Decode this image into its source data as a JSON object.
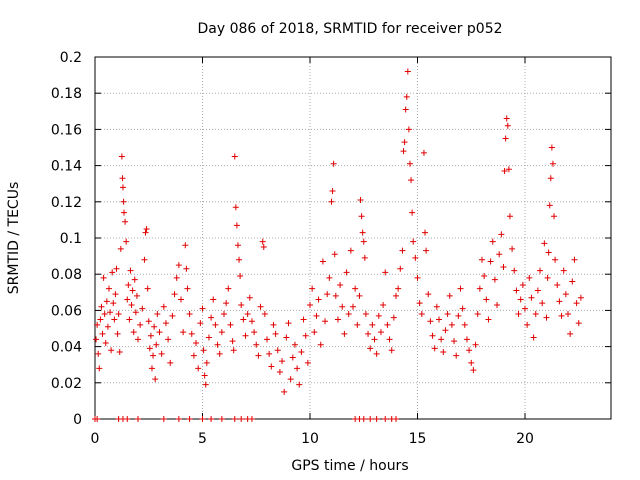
{
  "chart_data": {
    "type": "scatter",
    "title": "Day 086 of 2018, SRMTID for receiver p052",
    "xlabel": "GPS time / hours",
    "ylabel": "SRMTID / TECUs",
    "xlim": [
      0,
      24
    ],
    "ylim": [
      0,
      0.2
    ],
    "x_ticks": [
      0,
      5,
      10,
      15,
      20
    ],
    "x_tick_labels": [
      "0",
      "5",
      "10",
      "15",
      "20"
    ],
    "y_ticks": [
      0,
      0.02,
      0.04,
      0.06,
      0.08,
      0.1,
      0.12,
      0.14,
      0.16,
      0.18,
      0.2
    ],
    "y_tick_labels": [
      "0",
      "0.02",
      "0.04",
      "0.06",
      "0.08",
      "0.1",
      "0.12",
      "0.14",
      "0.16",
      "0.18",
      "0.2"
    ],
    "grid": true,
    "marker": "plus",
    "colors": {
      "series": "#e00000",
      "grid": "#aaaaaa",
      "axis": "#000000"
    },
    "series": [
      {
        "name": "SRMTID",
        "points": [
          [
            0.05,
            0.044
          ],
          [
            0.1,
            0.052
          ],
          [
            0.15,
            0.036
          ],
          [
            0.2,
            0.028
          ],
          [
            0.25,
            0.055
          ],
          [
            0.3,
            0.062
          ],
          [
            0.35,
            0.047
          ],
          [
            0.4,
            0.078
          ],
          [
            0.45,
            0.058
          ],
          [
            0.5,
            0.042
          ],
          [
            0.55,
            0.065
          ],
          [
            0.6,
            0.051
          ],
          [
            0.65,
            0.072
          ],
          [
            0.7,
            0.059
          ],
          [
            0.75,
            0.038
          ],
          [
            0.8,
            0.081
          ],
          [
            0.85,
            0.064
          ],
          [
            0.9,
            0.055
          ],
          [
            0.95,
            0.069
          ],
          [
            1.0,
            0.083
          ],
          [
            1.05,
            0.047
          ],
          [
            1.1,
            0.058
          ],
          [
            1.15,
            0.037
          ],
          [
            1.2,
            0.094
          ],
          [
            1.25,
            0.145
          ],
          [
            1.28,
            0.133
          ],
          [
            1.3,
            0.128
          ],
          [
            1.33,
            0.12
          ],
          [
            1.35,
            0.114
          ],
          [
            1.4,
            0.109
          ],
          [
            1.45,
            0.098
          ],
          [
            1.5,
            0.066
          ],
          [
            1.55,
            0.074
          ],
          [
            1.6,
            0.055
          ],
          [
            1.65,
            0.082
          ],
          [
            1.7,
            0.063
          ],
          [
            1.75,
            0.071
          ],
          [
            1.8,
            0.048
          ],
          [
            1.85,
            0.077
          ],
          [
            1.9,
            0.059
          ],
          [
            1.95,
            0.068
          ],
          [
            2.0,
            0.044
          ],
          [
            2.1,
            0.052
          ],
          [
            2.2,
            0.061
          ],
          [
            2.3,
            0.088
          ],
          [
            2.35,
            0.103
          ],
          [
            2.4,
            0.105
          ],
          [
            2.45,
            0.072
          ],
          [
            2.5,
            0.054
          ],
          [
            2.55,
            0.039
          ],
          [
            2.6,
            0.046
          ],
          [
            2.65,
            0.028
          ],
          [
            2.7,
            0.035
          ],
          [
            2.75,
            0.051
          ],
          [
            2.8,
            0.022
          ],
          [
            2.85,
            0.041
          ],
          [
            2.9,
            0.058
          ],
          [
            3.0,
            0.048
          ],
          [
            3.1,
            0.036
          ],
          [
            3.2,
            0.062
          ],
          [
            3.3,
            0.053
          ],
          [
            3.4,
            0.044
          ],
          [
            3.5,
            0.031
          ],
          [
            3.6,
            0.057
          ],
          [
            3.7,
            0.069
          ],
          [
            3.8,
            0.078
          ],
          [
            3.9,
            0.085
          ],
          [
            4.0,
            0.066
          ],
          [
            4.1,
            0.048
          ],
          [
            4.2,
            0.096
          ],
          [
            4.25,
            0.083
          ],
          [
            4.3,
            0.072
          ],
          [
            4.4,
            0.058
          ],
          [
            4.5,
            0.047
          ],
          [
            4.6,
            0.035
          ],
          [
            4.7,
            0.042
          ],
          [
            4.8,
            0.028
          ],
          [
            4.9,
            0.053
          ],
          [
            5.0,
            0.061
          ],
          [
            5.05,
            0.038
          ],
          [
            5.1,
            0.024
          ],
          [
            5.15,
            0.019
          ],
          [
            5.2,
            0.031
          ],
          [
            5.3,
            0.045
          ],
          [
            5.4,
            0.056
          ],
          [
            5.5,
            0.066
          ],
          [
            5.6,
            0.052
          ],
          [
            5.7,
            0.041
          ],
          [
            5.8,
            0.036
          ],
          [
            5.9,
            0.048
          ],
          [
            6.0,
            0.058
          ],
          [
            6.1,
            0.064
          ],
          [
            6.2,
            0.072
          ],
          [
            6.3,
            0.052
          ],
          [
            6.4,
            0.043
          ],
          [
            6.45,
            0.038
          ],
          [
            6.5,
            0.145
          ],
          [
            6.55,
            0.117
          ],
          [
            6.6,
            0.107
          ],
          [
            6.65,
            0.096
          ],
          [
            6.7,
            0.088
          ],
          [
            6.75,
            0.079
          ],
          [
            6.8,
            0.063
          ],
          [
            6.9,
            0.055
          ],
          [
            7.0,
            0.046
          ],
          [
            7.1,
            0.058
          ],
          [
            7.2,
            0.067
          ],
          [
            7.3,
            0.054
          ],
          [
            7.4,
            0.048
          ],
          [
            7.5,
            0.041
          ],
          [
            7.6,
            0.035
          ],
          [
            7.7,
            0.062
          ],
          [
            7.8,
            0.098
          ],
          [
            7.85,
            0.095
          ],
          [
            7.9,
            0.058
          ],
          [
            8.0,
            0.044
          ],
          [
            8.1,
            0.036
          ],
          [
            8.2,
            0.029
          ],
          [
            8.3,
            0.052
          ],
          [
            8.4,
            0.047
          ],
          [
            8.5,
            0.038
          ],
          [
            8.6,
            0.026
          ],
          [
            8.7,
            0.032
          ],
          [
            8.8,
            0.015
          ],
          [
            8.9,
            0.045
          ],
          [
            9.0,
            0.053
          ],
          [
            9.1,
            0.022
          ],
          [
            9.2,
            0.034
          ],
          [
            9.3,
            0.041
          ],
          [
            9.4,
            0.028
          ],
          [
            9.5,
            0.019
          ],
          [
            9.6,
            0.037
          ],
          [
            9.7,
            0.055
          ],
          [
            9.8,
            0.046
          ],
          [
            9.9,
            0.031
          ],
          [
            10.0,
            0.063
          ],
          [
            10.1,
            0.072
          ],
          [
            10.2,
            0.048
          ],
          [
            10.3,
            0.057
          ],
          [
            10.4,
            0.066
          ],
          [
            10.5,
            0.041
          ],
          [
            10.6,
            0.087
          ],
          [
            10.7,
            0.054
          ],
          [
            10.8,
            0.069
          ],
          [
            10.9,
            0.078
          ],
          [
            11.0,
            0.12
          ],
          [
            11.05,
            0.126
          ],
          [
            11.1,
            0.141
          ],
          [
            11.15,
            0.091
          ],
          [
            11.2,
            0.068
          ],
          [
            11.3,
            0.055
          ],
          [
            11.4,
            0.074
          ],
          [
            11.5,
            0.062
          ],
          [
            11.6,
            0.047
          ],
          [
            11.7,
            0.081
          ],
          [
            11.8,
            0.058
          ],
          [
            11.9,
            0.093
          ],
          [
            12.0,
            0.062
          ],
          [
            12.1,
            0.072
          ],
          [
            12.2,
            0.052
          ],
          [
            12.3,
            0.068
          ],
          [
            12.35,
            0.121
          ],
          [
            12.4,
            0.112
          ],
          [
            12.45,
            0.103
          ],
          [
            12.5,
            0.098
          ],
          [
            12.55,
            0.089
          ],
          [
            12.6,
            0.058
          ],
          [
            12.7,
            0.047
          ],
          [
            12.8,
            0.039
          ],
          [
            12.9,
            0.052
          ],
          [
            13.0,
            0.044
          ],
          [
            13.1,
            0.036
          ],
          [
            13.2,
            0.057
          ],
          [
            13.3,
            0.048
          ],
          [
            13.4,
            0.063
          ],
          [
            13.5,
            0.081
          ],
          [
            13.6,
            0.052
          ],
          [
            13.7,
            0.044
          ],
          [
            13.8,
            0.038
          ],
          [
            13.9,
            0.056
          ],
          [
            14.0,
            0.068
          ],
          [
            14.1,
            0.072
          ],
          [
            14.2,
            0.083
          ],
          [
            14.3,
            0.093
          ],
          [
            14.35,
            0.148
          ],
          [
            14.4,
            0.153
          ],
          [
            14.45,
            0.171
          ],
          [
            14.5,
            0.178
          ],
          [
            14.55,
            0.192
          ],
          [
            14.6,
            0.16
          ],
          [
            14.65,
            0.141
          ],
          [
            14.7,
            0.132
          ],
          [
            14.75,
            0.114
          ],
          [
            14.8,
            0.098
          ],
          [
            14.9,
            0.089
          ],
          [
            15.0,
            0.078
          ],
          [
            15.1,
            0.064
          ],
          [
            15.2,
            0.058
          ],
          [
            15.3,
            0.147
          ],
          [
            15.35,
            0.103
          ],
          [
            15.4,
            0.093
          ],
          [
            15.5,
            0.069
          ],
          [
            15.6,
            0.054
          ],
          [
            15.7,
            0.046
          ],
          [
            15.8,
            0.039
          ],
          [
            15.9,
            0.062
          ],
          [
            16.0,
            0.055
          ],
          [
            16.1,
            0.044
          ],
          [
            16.2,
            0.037
          ],
          [
            16.3,
            0.049
          ],
          [
            16.4,
            0.058
          ],
          [
            16.5,
            0.068
          ],
          [
            16.6,
            0.052
          ],
          [
            16.7,
            0.043
          ],
          [
            16.8,
            0.035
          ],
          [
            16.9,
            0.057
          ],
          [
            17.0,
            0.072
          ],
          [
            17.1,
            0.061
          ],
          [
            17.2,
            0.052
          ],
          [
            17.3,
            0.044
          ],
          [
            17.4,
            0.038
          ],
          [
            17.5,
            0.031
          ],
          [
            17.6,
            0.027
          ],
          [
            17.7,
            0.041
          ],
          [
            17.8,
            0.058
          ],
          [
            17.9,
            0.072
          ],
          [
            18.0,
            0.088
          ],
          [
            18.1,
            0.079
          ],
          [
            18.2,
            0.066
          ],
          [
            18.3,
            0.055
          ],
          [
            18.4,
            0.087
          ],
          [
            18.5,
            0.098
          ],
          [
            18.6,
            0.077
          ],
          [
            18.7,
            0.063
          ],
          [
            18.8,
            0.091
          ],
          [
            18.9,
            0.102
          ],
          [
            19.0,
            0.084
          ],
          [
            19.05,
            0.137
          ],
          [
            19.1,
            0.155
          ],
          [
            19.15,
            0.166
          ],
          [
            19.2,
            0.162
          ],
          [
            19.25,
            0.138
          ],
          [
            19.3,
            0.112
          ],
          [
            19.4,
            0.094
          ],
          [
            19.5,
            0.082
          ],
          [
            19.6,
            0.071
          ],
          [
            19.7,
            0.058
          ],
          [
            19.8,
            0.066
          ],
          [
            19.9,
            0.074
          ],
          [
            20.0,
            0.061
          ],
          [
            20.1,
            0.052
          ],
          [
            20.2,
            0.078
          ],
          [
            20.3,
            0.067
          ],
          [
            20.4,
            0.045
          ],
          [
            20.5,
            0.058
          ],
          [
            20.6,
            0.071
          ],
          [
            20.7,
            0.082
          ],
          [
            20.8,
            0.064
          ],
          [
            20.9,
            0.097
          ],
          [
            21.0,
            0.056
          ],
          [
            21.05,
            0.078
          ],
          [
            21.1,
            0.092
          ],
          [
            21.15,
            0.118
          ],
          [
            21.2,
            0.133
          ],
          [
            21.25,
            0.15
          ],
          [
            21.3,
            0.141
          ],
          [
            21.35,
            0.112
          ],
          [
            21.4,
            0.088
          ],
          [
            21.5,
            0.074
          ],
          [
            21.6,
            0.065
          ],
          [
            21.7,
            0.057
          ],
          [
            21.8,
            0.082
          ],
          [
            21.9,
            0.069
          ],
          [
            22.0,
            0.058
          ],
          [
            22.1,
            0.047
          ],
          [
            22.2,
            0.076
          ],
          [
            22.3,
            0.088
          ],
          [
            22.4,
            0.064
          ],
          [
            22.5,
            0.053
          ],
          [
            22.6,
            0.067
          ],
          [
            0.0,
            0.0
          ],
          [
            0.1,
            0.0
          ],
          [
            1.1,
            0.0
          ],
          [
            1.3,
            0.0
          ],
          [
            1.5,
            0.0
          ],
          [
            2.0,
            0.0
          ],
          [
            3.2,
            0.0
          ],
          [
            3.9,
            0.0
          ],
          [
            4.4,
            0.0
          ],
          [
            5.0,
            0.0
          ],
          [
            5.4,
            0.0
          ],
          [
            5.9,
            0.0
          ],
          [
            6.5,
            0.0
          ],
          [
            6.8,
            0.0
          ],
          [
            7.1,
            0.0
          ],
          [
            7.3,
            0.0
          ],
          [
            12.1,
            0.0
          ],
          [
            12.3,
            0.0
          ],
          [
            12.5,
            0.0
          ],
          [
            12.8,
            0.0
          ],
          [
            13.1,
            0.0
          ],
          [
            13.5,
            0.0
          ],
          [
            13.8,
            0.0
          ],
          [
            14.0,
            0.0
          ]
        ]
      }
    ]
  }
}
